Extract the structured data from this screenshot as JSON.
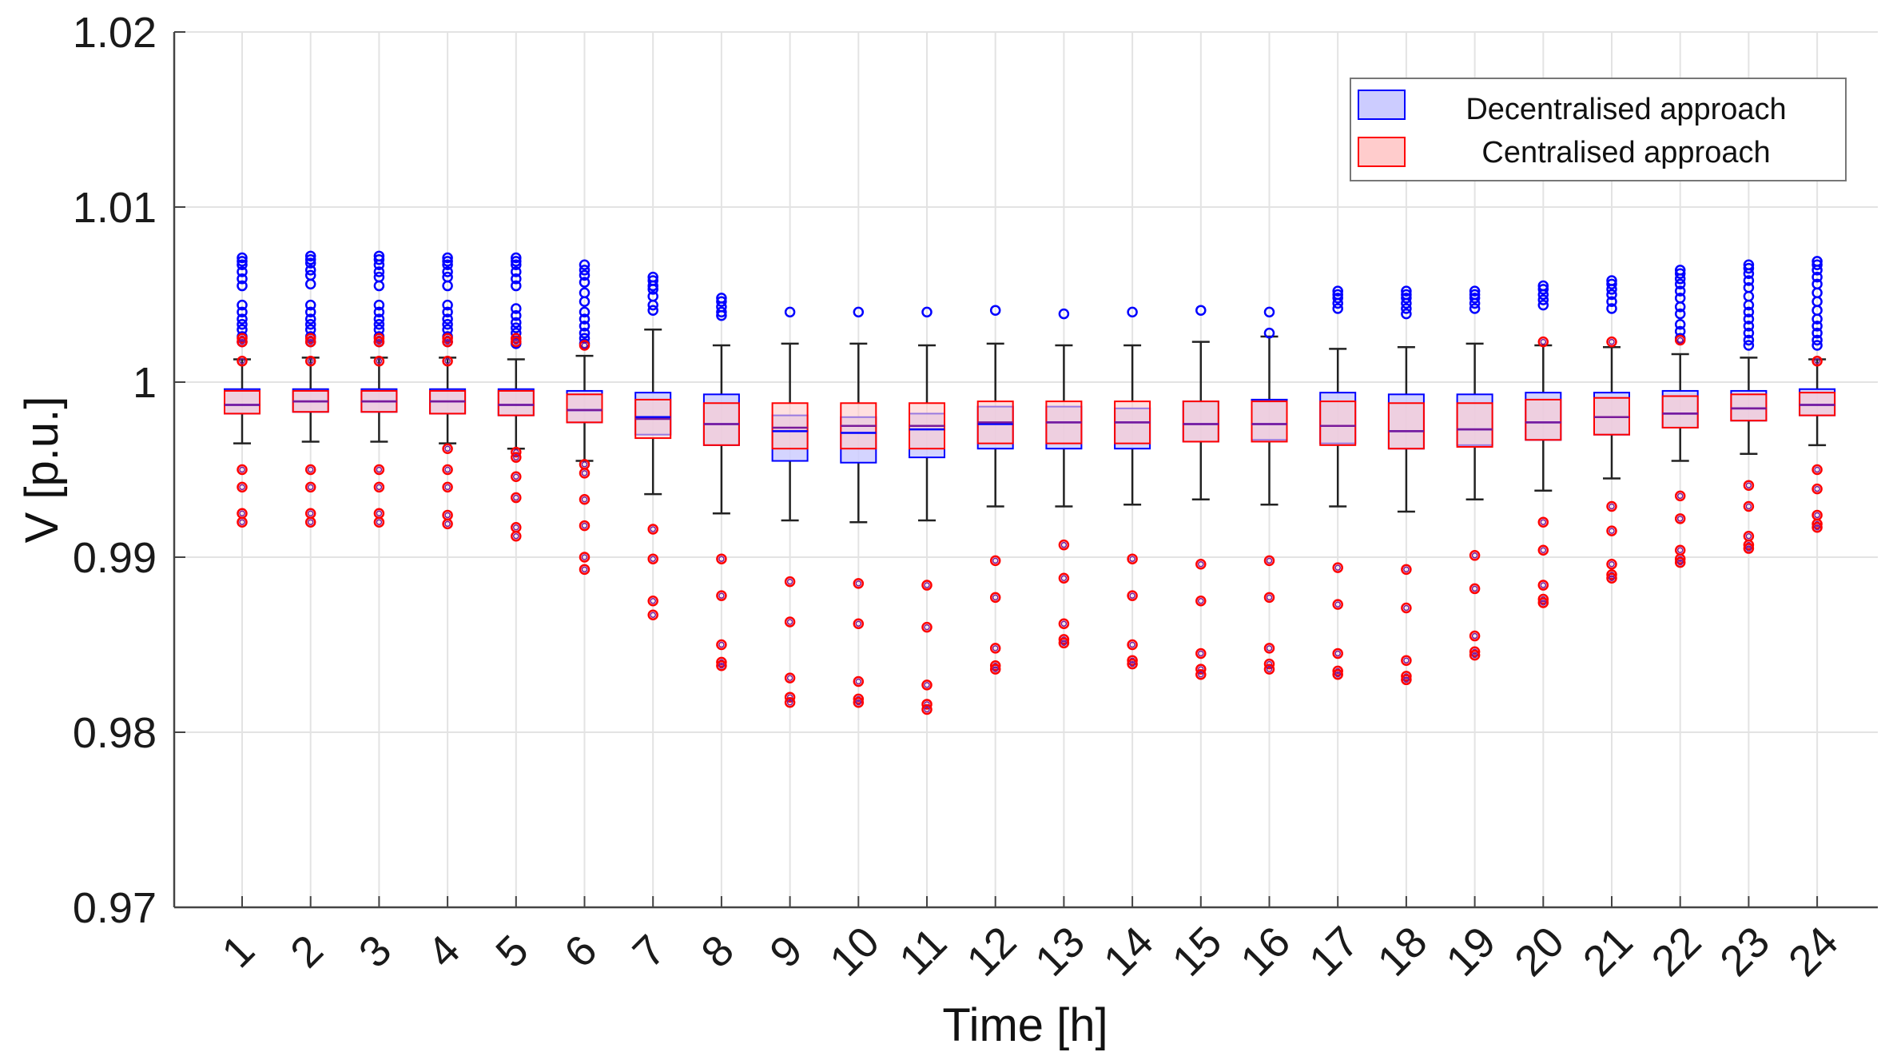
{
  "chart_data": {
    "type": "boxplot",
    "title": "",
    "xlabel": "Time [h]",
    "ylabel": "V [p.u.]",
    "ylim": [
      0.97,
      1.02
    ],
    "yticks": [
      0.97,
      0.98,
      0.99,
      1,
      1.01,
      1.02
    ],
    "yticklabels": [
      "0.97",
      "0.98",
      "0.99",
      "1",
      "1.01",
      "1.02"
    ],
    "categories": [
      "1",
      "2",
      "3",
      "4",
      "5",
      "6",
      "7",
      "8",
      "9",
      "10",
      "11",
      "12",
      "13",
      "14",
      "15",
      "16",
      "17",
      "18",
      "19",
      "20",
      "21",
      "22",
      "23",
      "24"
    ],
    "grid": true,
    "legend_position": "top-right",
    "colors": {
      "decentralised": "#0000ff",
      "centralised": "#ff0000",
      "decentralised_fill": "#ccccff",
      "centralised_fill": "#ffcccc",
      "median_overlap": "#7a1a9a",
      "whisker": "#222222"
    },
    "series": [
      {
        "name": "Decentralised approach",
        "boxes": [
          {
            "q1": 0.9982,
            "median": 0.9987,
            "q3": 0.9996
          },
          {
            "q1": 0.9983,
            "median": 0.9989,
            "q3": 0.9996
          },
          {
            "q1": 0.9983,
            "median": 0.9989,
            "q3": 0.9996
          },
          {
            "q1": 0.9982,
            "median": 0.9989,
            "q3": 0.9996
          },
          {
            "q1": 0.9981,
            "median": 0.9987,
            "q3": 0.9996
          },
          {
            "q1": 0.9977,
            "median": 0.9984,
            "q3": 0.9995
          },
          {
            "q1": 0.997,
            "median": 0.998,
            "q3": 0.9994
          },
          {
            "q1": 0.9964,
            "median": 0.9976,
            "q3": 0.9993
          },
          {
            "q1": 0.9955,
            "median": 0.9972,
            "q3": 0.9981
          },
          {
            "q1": 0.9954,
            "median": 0.9971,
            "q3": 0.998
          },
          {
            "q1": 0.9957,
            "median": 0.9973,
            "q3": 0.9982
          },
          {
            "q1": 0.9962,
            "median": 0.9976,
            "q3": 0.9986
          },
          {
            "q1": 0.9962,
            "median": 0.9977,
            "q3": 0.9986
          },
          {
            "q1": 0.9962,
            "median": 0.9977,
            "q3": 0.9985
          },
          {
            "q1": 0.9966,
            "median": 0.9976,
            "q3": 0.9989
          },
          {
            "q1": 0.9967,
            "median": 0.9976,
            "q3": 0.999
          },
          {
            "q1": 0.9965,
            "median": 0.9975,
            "q3": 0.9994
          },
          {
            "q1": 0.9962,
            "median": 0.9972,
            "q3": 0.9993
          },
          {
            "q1": 0.9964,
            "median": 0.9973,
            "q3": 0.9993
          },
          {
            "q1": 0.9967,
            "median": 0.9977,
            "q3": 0.9994
          },
          {
            "q1": 0.997,
            "median": 0.998,
            "q3": 0.9994
          },
          {
            "q1": 0.9974,
            "median": 0.9982,
            "q3": 0.9995
          },
          {
            "q1": 0.9978,
            "median": 0.9985,
            "q3": 0.9995
          },
          {
            "q1": 0.9981,
            "median": 0.9987,
            "q3": 0.9996
          }
        ],
        "outliers": [
          [
            1.0071,
            1.0069,
            1.0067,
            1.0063,
            1.0059,
            1.0055,
            1.0044,
            1.004,
            1.0036,
            1.0033,
            1.003,
            1.0026,
            1.0023
          ],
          [
            1.0072,
            1.007,
            1.0068,
            1.0064,
            1.0061,
            1.0056,
            1.0044,
            1.004,
            1.0036,
            1.0033,
            1.003,
            1.0026,
            1.0023
          ],
          [
            1.0072,
            1.007,
            1.0067,
            1.0063,
            1.006,
            1.0055,
            1.0044,
            1.004,
            1.0036,
            1.0033,
            1.003,
            1.0026,
            1.0023
          ],
          [
            1.0071,
            1.0069,
            1.0067,
            1.0063,
            1.006,
            1.0055,
            1.0044,
            1.004,
            1.0036,
            1.0033,
            1.003,
            1.0026,
            1.0023
          ],
          [
            1.0071,
            1.0069,
            1.0067,
            1.0063,
            1.0059,
            1.0055,
            1.0042,
            1.0038,
            1.0034,
            1.0031,
            1.0028,
            1.0025,
            1.0022
          ],
          [
            1.0067,
            1.0064,
            1.0061,
            1.0057,
            1.0051,
            1.0046,
            1.004,
            1.0036,
            1.0032,
            1.0028,
            1.0025,
            1.0022
          ],
          [
            1.006,
            1.0058,
            1.0055,
            1.0053,
            1.0049,
            1.0044,
            1.0041
          ],
          [
            1.0048,
            1.0046,
            1.0043,
            1.004,
            1.0038
          ],
          [
            1.004
          ],
          [
            1.004
          ],
          [
            1.004
          ],
          [
            1.0041
          ],
          [
            1.0039
          ],
          [
            1.004
          ],
          [
            1.0041
          ],
          [
            1.004,
            1.0028
          ],
          [
            1.0052,
            1.005,
            1.0048,
            1.0045,
            1.0042
          ],
          [
            1.0052,
            1.005,
            1.0048,
            1.0045,
            1.0042,
            1.0039
          ],
          [
            1.0052,
            1.005,
            1.0048,
            1.0045,
            1.0042
          ],
          [
            1.0055,
            1.0053,
            1.005,
            1.0047,
            1.0044
          ],
          [
            1.0058,
            1.0056,
            1.0053,
            1.005,
            1.0046,
            1.0042
          ],
          [
            1.0064,
            1.0062,
            1.0059,
            1.0056,
            1.0052,
            1.0048,
            1.0043,
            1.0039,
            1.0033,
            1.0029,
            1.0025
          ],
          [
            1.0067,
            1.0065,
            1.0062,
            1.0058,
            1.0054,
            1.0049,
            1.0044,
            1.004,
            1.0036,
            1.0032,
            1.0028,
            1.0024,
            1.0021
          ],
          [
            1.0069,
            1.0067,
            1.0064,
            1.006,
            1.0056,
            1.0051,
            1.0046,
            1.0041,
            1.0036,
            1.0032,
            1.0028,
            1.0024,
            1.0021
          ]
        ]
      },
      {
        "name": "Centralised approach",
        "boxes": [
          {
            "q1": 0.9982,
            "median": 0.9987,
            "q3": 0.9995
          },
          {
            "q1": 0.9983,
            "median": 0.9989,
            "q3": 0.9995
          },
          {
            "q1": 0.9983,
            "median": 0.9989,
            "q3": 0.9995
          },
          {
            "q1": 0.9982,
            "median": 0.9989,
            "q3": 0.9995
          },
          {
            "q1": 0.9981,
            "median": 0.9987,
            "q3": 0.9995
          },
          {
            "q1": 0.9977,
            "median": 0.9984,
            "q3": 0.9993
          },
          {
            "q1": 0.9968,
            "median": 0.9979,
            "q3": 0.999
          },
          {
            "q1": 0.9964,
            "median": 0.9976,
            "q3": 0.9988
          },
          {
            "q1": 0.9962,
            "median": 0.9974,
            "q3": 0.9988
          },
          {
            "q1": 0.9962,
            "median": 0.9975,
            "q3": 0.9988
          },
          {
            "q1": 0.9962,
            "median": 0.9975,
            "q3": 0.9988
          },
          {
            "q1": 0.9965,
            "median": 0.9977,
            "q3": 0.9989
          },
          {
            "q1": 0.9965,
            "median": 0.9977,
            "q3": 0.9989
          },
          {
            "q1": 0.9965,
            "median": 0.9977,
            "q3": 0.9989
          },
          {
            "q1": 0.9966,
            "median": 0.9976,
            "q3": 0.9989
          },
          {
            "q1": 0.9966,
            "median": 0.9976,
            "q3": 0.9989
          },
          {
            "q1": 0.9964,
            "median": 0.9975,
            "q3": 0.9989
          },
          {
            "q1": 0.9962,
            "median": 0.9972,
            "q3": 0.9988
          },
          {
            "q1": 0.9963,
            "median": 0.9973,
            "q3": 0.9988
          },
          {
            "q1": 0.9967,
            "median": 0.9977,
            "q3": 0.999
          },
          {
            "q1": 0.997,
            "median": 0.998,
            "q3": 0.9991
          },
          {
            "q1": 0.9974,
            "median": 0.9982,
            "q3": 0.9992
          },
          {
            "q1": 0.9978,
            "median": 0.9985,
            "q3": 0.9993
          },
          {
            "q1": 0.9981,
            "median": 0.9987,
            "q3": 0.9994
          }
        ],
        "outliers": [
          [
            1.0025,
            1.0023,
            1.0012,
            0.995,
            0.994,
            0.9925,
            0.992
          ],
          [
            1.0025,
            1.0023,
            1.0012,
            0.995,
            0.994,
            0.9925,
            0.992
          ],
          [
            1.0025,
            1.0023,
            1.0012,
            0.995,
            0.994,
            0.9925,
            0.992
          ],
          [
            1.0025,
            1.0023,
            1.0012,
            0.9962,
            0.995,
            0.994,
            0.9924,
            0.9919
          ],
          [
            1.0025,
            1.0023,
            0.996,
            0.9957,
            0.9946,
            0.9934,
            0.9917,
            0.9912
          ],
          [
            1.0021,
            0.9953,
            0.9948,
            0.9933,
            0.9918,
            0.99,
            0.9893
          ],
          [
            0.9916,
            0.9899,
            0.9875,
            0.9867
          ],
          [
            0.9899,
            0.9878,
            0.985,
            0.984,
            0.9838
          ],
          [
            0.9886,
            0.9863,
            0.9831,
            0.982,
            0.9817
          ],
          [
            0.9885,
            0.9862,
            0.9829,
            0.9819,
            0.9817
          ],
          [
            0.9884,
            0.986,
            0.9827,
            0.9816,
            0.9813
          ],
          [
            0.9898,
            0.9877,
            0.9848,
            0.9838,
            0.9836
          ],
          [
            0.9907,
            0.9888,
            0.9862,
            0.9853,
            0.9851
          ],
          [
            0.9899,
            0.9878,
            0.985,
            0.9841,
            0.9839
          ],
          [
            0.9896,
            0.9875,
            0.9845,
            0.9836,
            0.9833
          ],
          [
            0.9898,
            0.9877,
            0.9848,
            0.9839,
            0.9836
          ],
          [
            0.9894,
            0.9873,
            0.9845,
            0.9835,
            0.9833
          ],
          [
            0.9893,
            0.9871,
            0.9841,
            0.9832,
            0.983
          ],
          [
            0.9901,
            0.9882,
            0.9855,
            0.9846,
            0.9844
          ],
          [
            1.0023,
            0.992,
            0.9904,
            0.9884,
            0.9876,
            0.9874
          ],
          [
            1.0023,
            0.9929,
            0.9915,
            0.9896,
            0.989,
            0.9888
          ],
          [
            1.0024,
            0.9935,
            0.9922,
            0.9904,
            0.9899,
            0.9897
          ],
          [
            0.9941,
            0.9929,
            0.9912,
            0.9907,
            0.9905
          ],
          [
            1.0012,
            0.995,
            0.9939,
            0.9924,
            0.9919,
            0.9917
          ]
        ]
      }
    ],
    "whiskers": [
      {
        "low": 0.9965,
        "high": 1.0013
      },
      {
        "low": 0.9966,
        "high": 1.0014
      },
      {
        "low": 0.9966,
        "high": 1.0014
      },
      {
        "low": 0.9965,
        "high": 1.0014
      },
      {
        "low": 0.9962,
        "high": 1.0013
      },
      {
        "low": 0.9955,
        "high": 1.0015
      },
      {
        "low": 0.9936,
        "high": 1.003
      },
      {
        "low": 0.9925,
        "high": 1.0021
      },
      {
        "low": 0.9921,
        "high": 1.0022
      },
      {
        "low": 0.992,
        "high": 1.0022
      },
      {
        "low": 0.9921,
        "high": 1.0021
      },
      {
        "low": 0.9929,
        "high": 1.0022
      },
      {
        "low": 0.9929,
        "high": 1.0021
      },
      {
        "low": 0.993,
        "high": 1.0021
      },
      {
        "low": 0.9933,
        "high": 1.0023
      },
      {
        "low": 0.993,
        "high": 1.0026
      },
      {
        "low": 0.9929,
        "high": 1.0019
      },
      {
        "low": 0.9926,
        "high": 1.002
      },
      {
        "low": 0.9933,
        "high": 1.0022
      },
      {
        "low": 0.9938,
        "high": 1.0021
      },
      {
        "low": 0.9945,
        "high": 1.002
      },
      {
        "low": 0.9955,
        "high": 1.0016
      },
      {
        "low": 0.9959,
        "high": 1.0014
      },
      {
        "low": 0.9964,
        "high": 1.0013
      }
    ],
    "legend": [
      "Decentralised approach",
      "Centralised approach"
    ]
  }
}
